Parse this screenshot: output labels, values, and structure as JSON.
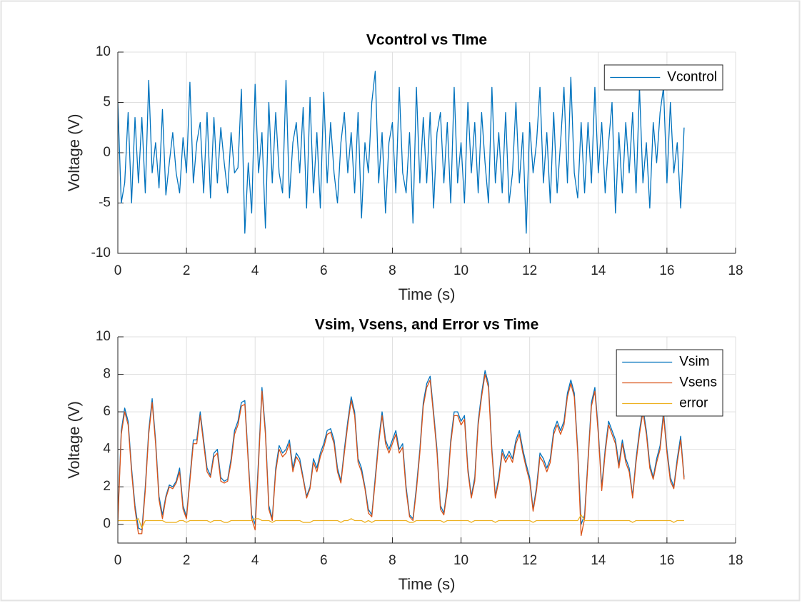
{
  "chart_data": [
    {
      "type": "line",
      "title": "Vcontrol vs TIme",
      "xlabel": "Time (s)",
      "ylabel": "Voltage (V)",
      "xlim": [
        0,
        18
      ],
      "xticks": [
        0,
        2,
        4,
        6,
        8,
        10,
        12,
        14,
        16,
        18
      ],
      "ylim": [
        -10,
        10
      ],
      "yticks": [
        -10,
        -5,
        0,
        5,
        10
      ],
      "grid": true,
      "legend": "upper right",
      "x": [
        0,
        0.1,
        0.2,
        0.3,
        0.4,
        0.5,
        0.6,
        0.7,
        0.8,
        0.9,
        1,
        1.1,
        1.2,
        1.3,
        1.4,
        1.5,
        1.6,
        1.7,
        1.8,
        1.9,
        2,
        2.1,
        2.2,
        2.3,
        2.4,
        2.5,
        2.6,
        2.7,
        2.8,
        2.9,
        3,
        3.1,
        3.2,
        3.3,
        3.4,
        3.5,
        3.6,
        3.7,
        3.8,
        3.9,
        4,
        4.1,
        4.2,
        4.3,
        4.4,
        4.5,
        4.6,
        4.7,
        4.8,
        4.9,
        5,
        5.1,
        5.2,
        5.3,
        5.4,
        5.5,
        5.6,
        5.7,
        5.8,
        5.9,
        6,
        6.1,
        6.2,
        6.3,
        6.4,
        6.5,
        6.6,
        6.7,
        6.8,
        6.9,
        7,
        7.1,
        7.2,
        7.3,
        7.4,
        7.5,
        7.6,
        7.7,
        7.8,
        7.9,
        8,
        8.1,
        8.2,
        8.3,
        8.4,
        8.5,
        8.6,
        8.7,
        8.8,
        8.9,
        9,
        9.1,
        9.2,
        9.3,
        9.4,
        9.5,
        9.6,
        9.7,
        9.8,
        9.9,
        10,
        10.1,
        10.2,
        10.3,
        10.4,
        10.5,
        10.6,
        10.7,
        10.8,
        10.9,
        11,
        11.1,
        11.2,
        11.3,
        11.4,
        11.5,
        11.6,
        11.7,
        11.8,
        11.9,
        12,
        12.1,
        12.2,
        12.3,
        12.4,
        12.5,
        12.6,
        12.7,
        12.8,
        12.9,
        13,
        13.1,
        13.2,
        13.3,
        13.4,
        13.5,
        13.6,
        13.7,
        13.8,
        13.9,
        14,
        14.1,
        14.2,
        14.3,
        14.4,
        14.5,
        14.6,
        14.7,
        14.8,
        14.9,
        15,
        15.1,
        15.2,
        15.3,
        15.4,
        15.5,
        15.6,
        15.7,
        15.8,
        15.9,
        16,
        16.1,
        16.2,
        16.3,
        16.4,
        16.5
      ],
      "series": [
        {
          "name": "Vcontrol",
          "color": "#0072bd",
          "values": [
            5,
            -5,
            -3,
            4,
            -5,
            3.5,
            -3,
            3.5,
            -4,
            7.2,
            -2,
            1,
            -3.5,
            4.3,
            -4.2,
            -1,
            2,
            -2,
            -4,
            1.5,
            -2,
            7,
            -3,
            1,
            3,
            -4,
            4,
            -4.5,
            3.5,
            -3,
            2.5,
            -1,
            -4,
            2,
            -2,
            -1.5,
            6.3,
            -8,
            -1,
            -6,
            6.8,
            -2,
            2,
            -7.5,
            5,
            -3,
            4,
            -2,
            -4,
            7.2,
            -4.5,
            1,
            3,
            -2,
            4.5,
            -5.5,
            5.5,
            -4,
            2,
            -5.5,
            6,
            -3,
            3,
            -2,
            -5,
            1,
            4,
            -2,
            2,
            -4,
            4,
            -6.5,
            1,
            -2,
            5,
            8.1,
            -3,
            2,
            -6,
            1,
            3,
            -4,
            6.5,
            -2,
            -4,
            2,
            -7,
            6.5,
            -3,
            3.5,
            -3,
            4,
            -5.5,
            2,
            4,
            -3,
            3,
            -5,
            6.5,
            -3,
            1,
            -5,
            5,
            -2,
            3,
            -4,
            4,
            -1,
            -5,
            6.5,
            -3,
            2,
            -4,
            4,
            -5,
            -2,
            5,
            -3,
            2,
            -8,
            3,
            -2,
            1,
            6.5,
            -3,
            2,
            -5,
            4,
            -4,
            1,
            6.5,
            -3,
            7.5,
            -2,
            -4.5,
            3,
            -4,
            3,
            -3,
            6.5,
            -2,
            3,
            -4,
            1,
            5,
            -6,
            2,
            -4,
            3,
            -2,
            4,
            -4,
            6.5,
            -3,
            1,
            -5.5,
            3,
            -1,
            4,
            6.5,
            -3,
            5,
            -2,
            1,
            -5.5,
            2.5
          ]
        }
      ]
    },
    {
      "type": "line",
      "title": "Vsim, Vsens, and Error vs Time",
      "xlabel": "Time (s)",
      "ylabel": "Voltage (V)",
      "xlim": [
        0,
        18
      ],
      "xticks": [
        0,
        2,
        4,
        6,
        8,
        10,
        12,
        14,
        16,
        18
      ],
      "ylim": [
        -1,
        10
      ],
      "yticks": [
        0,
        2,
        4,
        6,
        8,
        10
      ],
      "grid": true,
      "legend": "upper right",
      "x": [
        0,
        0.1,
        0.2,
        0.3,
        0.4,
        0.5,
        0.6,
        0.7,
        0.8,
        0.9,
        1,
        1.1,
        1.2,
        1.3,
        1.4,
        1.5,
        1.6,
        1.7,
        1.8,
        1.9,
        2,
        2.1,
        2.2,
        2.3,
        2.4,
        2.5,
        2.6,
        2.7,
        2.8,
        2.9,
        3,
        3.1,
        3.2,
        3.3,
        3.4,
        3.5,
        3.6,
        3.7,
        3.8,
        3.9,
        4,
        4.1,
        4.2,
        4.3,
        4.4,
        4.5,
        4.6,
        4.7,
        4.8,
        4.9,
        5,
        5.1,
        5.2,
        5.3,
        5.4,
        5.5,
        5.6,
        5.7,
        5.8,
        5.9,
        6,
        6.1,
        6.2,
        6.3,
        6.4,
        6.5,
        6.6,
        6.7,
        6.8,
        6.9,
        7,
        7.1,
        7.2,
        7.3,
        7.4,
        7.5,
        7.6,
        7.7,
        7.8,
        7.9,
        8,
        8.1,
        8.2,
        8.3,
        8.4,
        8.5,
        8.6,
        8.7,
        8.8,
        8.9,
        9,
        9.1,
        9.2,
        9.3,
        9.4,
        9.5,
        9.6,
        9.7,
        9.8,
        9.9,
        10,
        10.1,
        10.2,
        10.3,
        10.4,
        10.5,
        10.6,
        10.7,
        10.8,
        10.9,
        11,
        11.1,
        11.2,
        11.3,
        11.4,
        11.5,
        11.6,
        11.7,
        11.8,
        11.9,
        12,
        12.1,
        12.2,
        12.3,
        12.4,
        12.5,
        12.6,
        12.7,
        12.8,
        12.9,
        13,
        13.1,
        13.2,
        13.3,
        13.4,
        13.5,
        13.6,
        13.7,
        13.8,
        13.9,
        14,
        14.1,
        14.2,
        14.3,
        14.4,
        14.5,
        14.6,
        14.7,
        14.8,
        14.9,
        15,
        15.1,
        15.2,
        15.3,
        15.4,
        15.5,
        15.6,
        15.7,
        15.8,
        15.9,
        16,
        16.1,
        16.2,
        16.3,
        16.4,
        16.5
      ],
      "series": [
        {
          "name": "Vsim",
          "color": "#0072bd",
          "values": [
            0.3,
            5,
            6.2,
            5.5,
            3,
            1,
            -0.2,
            -0.3,
            2,
            5,
            6.7,
            4.5,
            1.5,
            0.5,
            1.5,
            2.1,
            2,
            2.3,
            3,
            1,
            0.4,
            2.5,
            4.5,
            4.5,
            6,
            4.5,
            3,
            2.6,
            3.8,
            4,
            2.5,
            2.3,
            2.4,
            3.5,
            5,
            5.5,
            6.5,
            6.6,
            3.5,
            0.5,
            0,
            3.5,
            7.3,
            5,
            1,
            0.3,
            3,
            4.2,
            3.8,
            4,
            4.5,
            3,
            3.8,
            3.5,
            2.5,
            1.5,
            2,
            3.5,
            3,
            3.8,
            4.3,
            5,
            5.1,
            4.5,
            3,
            2.3,
            4,
            5.5,
            6.8,
            6,
            3.5,
            3,
            2,
            0.8,
            0.5,
            2.5,
            4.5,
            6,
            4.5,
            4,
            4.5,
            5,
            4,
            4.3,
            2,
            0.5,
            0.3,
            2,
            4,
            6.5,
            7.5,
            7.9,
            6,
            4,
            1,
            0.6,
            2,
            4.5,
            6,
            6,
            5.5,
            5.8,
            3,
            1.5,
            2.5,
            5.5,
            7,
            8.2,
            7.5,
            4,
            1.5,
            2.5,
            4,
            3.5,
            3.9,
            3.5,
            4.5,
            5,
            4,
            3.2,
            2.5,
            0.8,
            2,
            3.8,
            3.5,
            3,
            3.5,
            5,
            5.5,
            5,
            5.5,
            7,
            7.7,
            7,
            4,
            0,
            0.5,
            3.5,
            6.5,
            7.3,
            5,
            2,
            4,
            5.5,
            5,
            4.5,
            3.2,
            4.5,
            3.5,
            3,
            1.5,
            3.5,
            5,
            6.2,
            5,
            3.2,
            2.5,
            3.5,
            4.2,
            6,
            4,
            2.5,
            2,
            3.5,
            4.7,
            2.5
          ]
        },
        {
          "name": "Vsens",
          "color": "#d95319",
          "values": [
            0.1,
            4.8,
            6.0,
            5.3,
            2.8,
            0.8,
            -0.5,
            -0.5,
            1.8,
            4.8,
            6.5,
            4.3,
            1.3,
            0.3,
            1.4,
            2.0,
            1.9,
            2.2,
            2.8,
            0.8,
            0.3,
            2.3,
            4.3,
            4.3,
            5.8,
            4.3,
            2.8,
            2.5,
            3.6,
            3.8,
            2.3,
            2.2,
            2.3,
            3.3,
            4.8,
            5.3,
            6.3,
            6.4,
            3.3,
            0.3,
            -0.3,
            3.2,
            7.1,
            4.8,
            0.8,
            0.2,
            2.8,
            4.0,
            3.6,
            3.8,
            4.3,
            2.8,
            3.6,
            3.3,
            2.4,
            1.4,
            1.9,
            3.3,
            2.8,
            3.6,
            4.1,
            4.8,
            4.9,
            4.3,
            2.8,
            2.2,
            3.8,
            5.3,
            6.6,
            5.8,
            3.3,
            2.8,
            1.9,
            0.6,
            0.4,
            2.3,
            4.3,
            5.8,
            4.3,
            3.8,
            4.3,
            4.8,
            3.8,
            4.1,
            1.8,
            0.4,
            0.2,
            1.8,
            3.8,
            6.3,
            7.3,
            7.7,
            5.8,
            3.8,
            0.8,
            0.5,
            1.8,
            4.3,
            5.8,
            5.8,
            5.3,
            5.6,
            2.8,
            1.4,
            2.3,
            5.3,
            6.8,
            8.0,
            7.3,
            3.8,
            1.4,
            2.3,
            3.8,
            3.3,
            3.7,
            3.3,
            4.3,
            4.8,
            3.8,
            3.0,
            2.3,
            0.7,
            1.8,
            3.6,
            3.3,
            2.8,
            3.3,
            4.8,
            5.3,
            4.8,
            5.3,
            6.8,
            7.5,
            6.8,
            3.8,
            -0.6,
            0.3,
            3.3,
            6.3,
            7.1,
            4.8,
            1.8,
            3.8,
            5.3,
            4.8,
            4.3,
            3.0,
            4.3,
            3.3,
            2.8,
            1.4,
            3.3,
            4.8,
            6.0,
            4.8,
            3.0,
            2.4,
            3.3,
            4.0,
            5.8,
            3.8,
            2.3,
            1.9,
            3.3,
            4.5,
            2.4
          ]
        },
        {
          "name": "error",
          "color": "#edb120",
          "values": [
            0.2,
            0.2,
            0.2,
            0.2,
            0.2,
            0.2,
            0.3,
            -0.2,
            0.2,
            0.2,
            0.2,
            0.2,
            0.2,
            0.2,
            0.1,
            0.1,
            0.1,
            0.1,
            0.2,
            0.2,
            0.1,
            0.2,
            0.2,
            0.2,
            0.2,
            0.2,
            0.2,
            0.1,
            0.2,
            0.2,
            0.2,
            0.1,
            0.1,
            0.2,
            0.2,
            0.2,
            0.2,
            0.2,
            0.2,
            0.2,
            0.3,
            0.3,
            0.2,
            0.2,
            0.2,
            0.1,
            0.2,
            0.2,
            0.2,
            0.2,
            0.2,
            0.2,
            0.2,
            0.2,
            0.1,
            0.1,
            0.1,
            0.2,
            0.2,
            0.2,
            0.2,
            0.2,
            0.2,
            0.2,
            0.2,
            0.1,
            0.2,
            0.2,
            0.3,
            0.2,
            0.2,
            0.2,
            0.1,
            0.2,
            0.1,
            0.2,
            0.2,
            0.2,
            0.2,
            0.2,
            0.2,
            0.2,
            0.2,
            0.2,
            0.2,
            0.1,
            0.1,
            0.2,
            0.2,
            0.2,
            0.2,
            0.2,
            0.2,
            0.2,
            0.2,
            0.1,
            0.2,
            0.2,
            0.2,
            0.2,
            0.2,
            0.2,
            0.2,
            0.1,
            0.2,
            0.2,
            0.2,
            0.2,
            0.2,
            0.2,
            0.1,
            0.2,
            0.2,
            0.2,
            0.2,
            0.2,
            0.2,
            0.2,
            0.2,
            0.2,
            0.2,
            0.1,
            0.2,
            0.2,
            0.2,
            0.2,
            0.2,
            0.2,
            0.2,
            0.2,
            0.2,
            0.2,
            0.2,
            0.2,
            0.2,
            0.5,
            0.2,
            0.2,
            0.2,
            0.2,
            0.2,
            0.2,
            0.2,
            0.2,
            0.2,
            0.2,
            0.2,
            0.2,
            0.2,
            0.2,
            0.1,
            0.2,
            0.2,
            0.2,
            0.2,
            0.2,
            0.2,
            0.2,
            0.2,
            0.2,
            0.2,
            0.2,
            0.1,
            0.2,
            0.2,
            0.2
          ]
        }
      ]
    }
  ]
}
